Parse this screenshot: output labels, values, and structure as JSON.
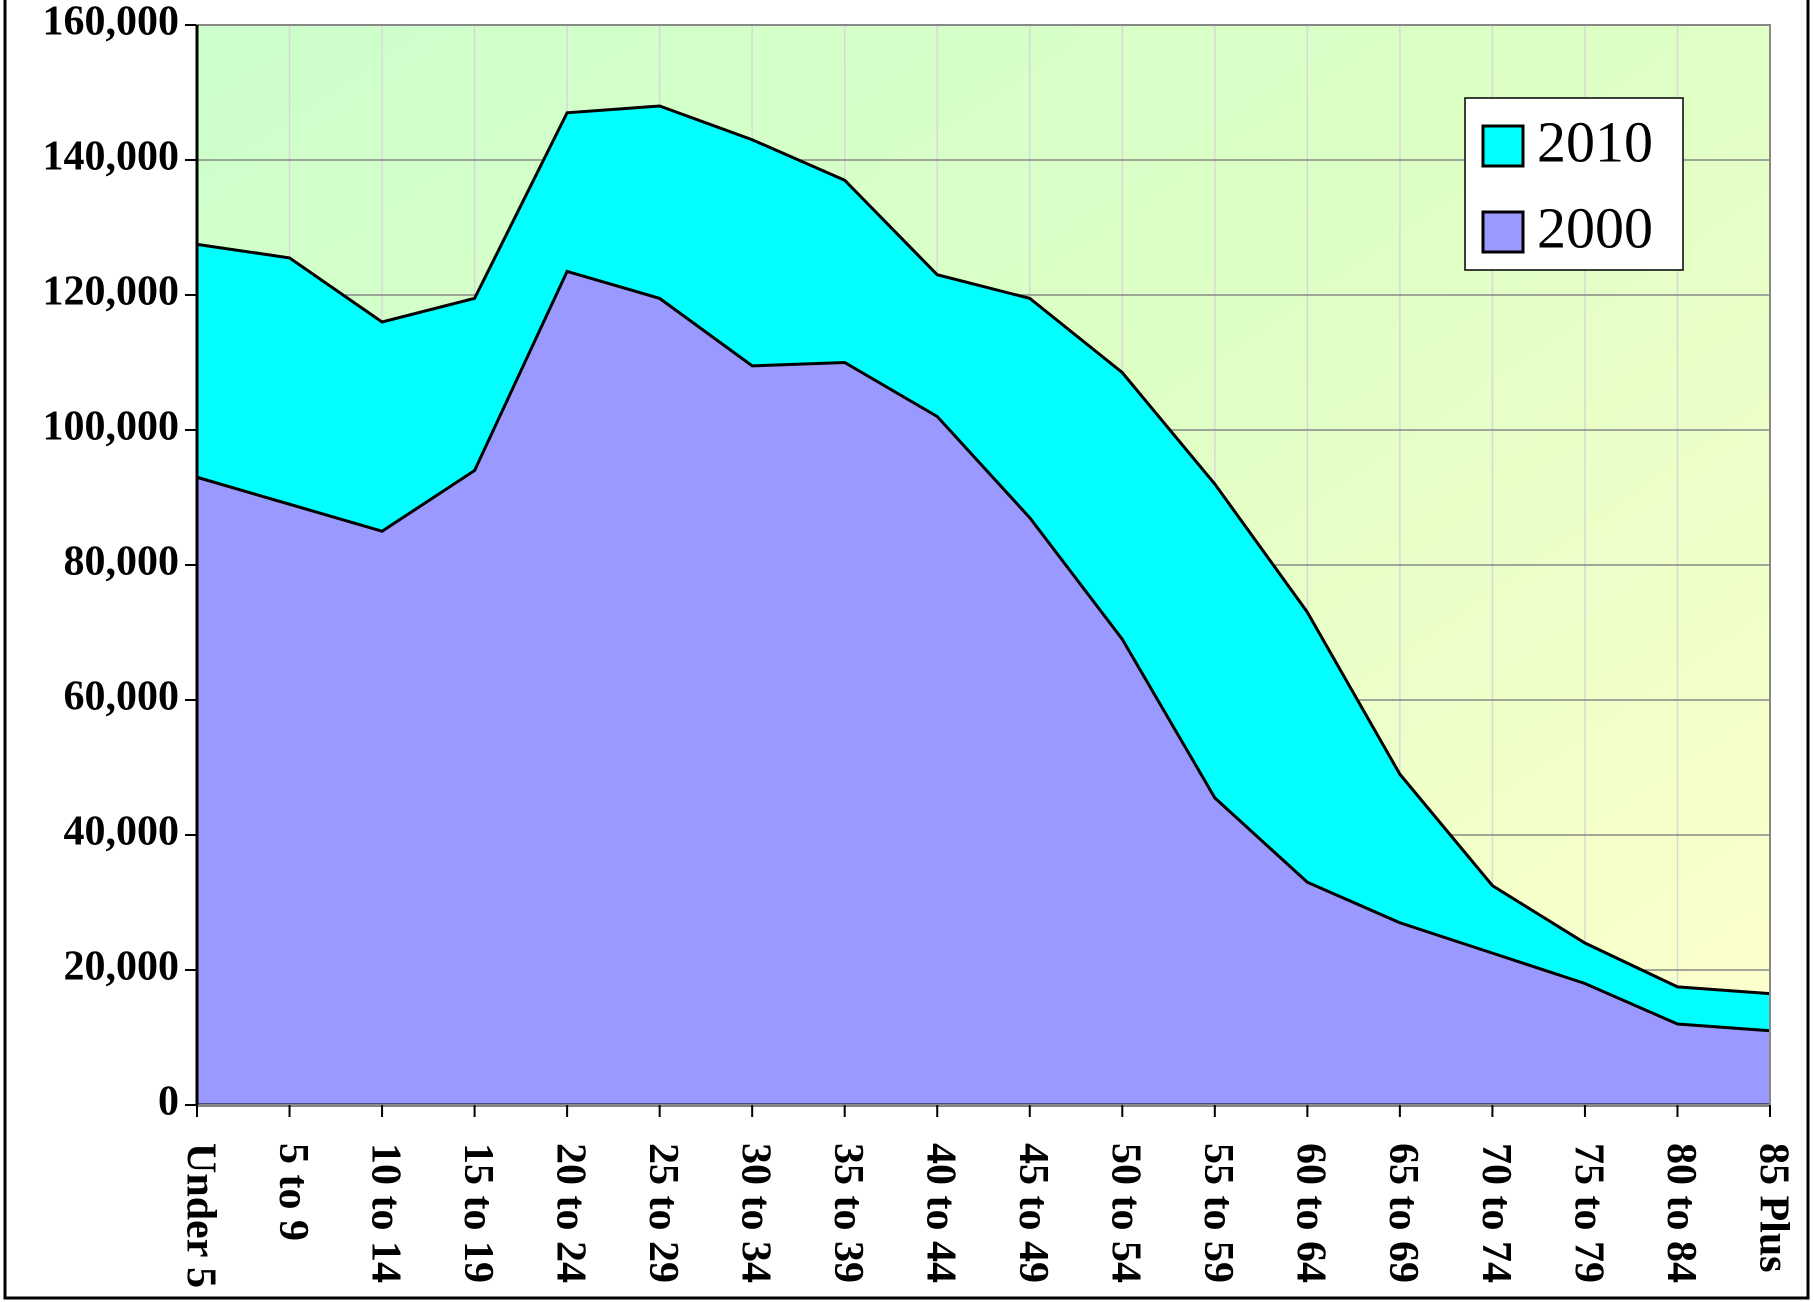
{
  "chart_data": {
    "type": "area",
    "categories": [
      "Under 5",
      "5 to 9",
      "10 to 14",
      "15 to 19",
      "20 to 24",
      "25 to 29",
      "30 to 34",
      "35 to 39",
      "40 to 44",
      "45 to 49",
      "50 to 54",
      "55 to 59",
      "60 to 64",
      "65 to 69",
      "70 to 74",
      "75 to 79",
      "80 to 84",
      "85 Plus"
    ],
    "series": [
      {
        "name": "2010",
        "color": "#00ffff",
        "values": [
          127500,
          125500,
          116000,
          119500,
          147000,
          148000,
          143000,
          137000,
          123000,
          119500,
          108500,
          92000,
          73000,
          49000,
          32500,
          24000,
          17500,
          16500
        ]
      },
      {
        "name": "2000",
        "color": "#9999ff",
        "values": [
          93000,
          89000,
          85000,
          94000,
          123500,
          119500,
          109500,
          110000,
          102000,
          87000,
          69000,
          45500,
          33000,
          27000,
          22500,
          18000,
          12000,
          11000
        ]
      }
    ],
    "ylim": [
      0,
      160000
    ],
    "yticks": [
      0,
      {
        "value": 20000,
        "label": "20,000"
      },
      {
        "value": 40000,
        "label": "40,000"
      },
      {
        "value": 60000,
        "label": "60,000"
      },
      {
        "value": 80000,
        "label": "80,000"
      },
      {
        "value": 100000,
        "label": "100,000"
      },
      {
        "value": 120000,
        "label": "120,000"
      },
      {
        "value": 140000,
        "label": "140,000"
      },
      {
        "value": 160000,
        "label": "160,000"
      }
    ],
    "grid": true,
    "legend": "upper right"
  }
}
